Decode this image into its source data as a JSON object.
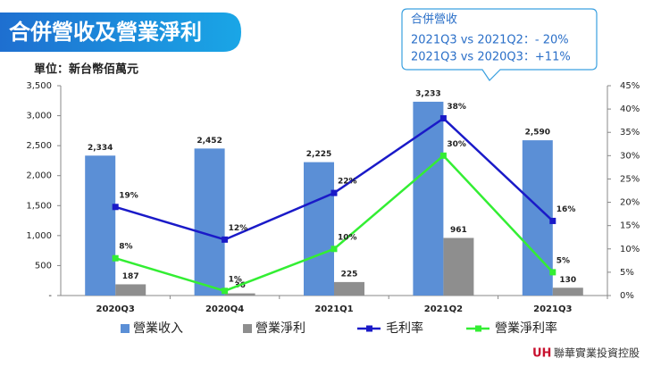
{
  "title": "合併營收及營業淨利",
  "unit": "單位：新台幣佰萬元",
  "callout": [
    "合併營收",
    "2021Q3 vs 2021Q2：- 20%",
    "2021Q3 vs 2020Q3：+11%"
  ],
  "logo": {
    "mark": "UH",
    "name": "聯華實業投資控股"
  },
  "chart_data": {
    "type": "bar_line",
    "categories": [
      "2020Q3",
      "2020Q4",
      "2021Q1",
      "2021Q2",
      "2021Q3"
    ],
    "series": [
      {
        "name": "營業收入",
        "type": "bar",
        "color": "#5b8fd6",
        "values": [
          2334,
          2452,
          2225,
          3233,
          2590
        ],
        "value_labels": [
          "2,334",
          "2,452",
          "2,225",
          "3,233",
          "2,590"
        ]
      },
      {
        "name": "營業淨利",
        "type": "bar",
        "color": "#8e8e8e",
        "values": [
          187,
          36,
          225,
          961,
          130
        ]
      },
      {
        "name": "毛利率",
        "type": "line",
        "axis": "y2",
        "color": "#1a1ac8",
        "values": [
          19,
          12,
          22,
          38,
          16
        ],
        "value_labels": [
          "19%",
          "12%",
          "22%",
          "38%",
          "16%"
        ]
      },
      {
        "name": "營業淨利率",
        "type": "line",
        "axis": "y2",
        "color": "#33ee33",
        "values": [
          8,
          1,
          10,
          30,
          5
        ],
        "value_labels": [
          "8%",
          "1%",
          "10%",
          "30%",
          "5%"
        ]
      }
    ],
    "ylim": [
      0,
      3500
    ],
    "yticks": [
      {
        "value": 0,
        "label": "-"
      },
      500,
      {
        "value": 1000,
        "label": "1,000"
      },
      {
        "value": 1500,
        "label": "1,500"
      },
      {
        "value": 2000,
        "label": "2,000"
      },
      {
        "value": 2500,
        "label": "2,500"
      },
      {
        "value": 3000,
        "label": "3,000"
      },
      {
        "value": 3500,
        "label": "3,500"
      }
    ],
    "y2lim": [
      0,
      45
    ],
    "y2ticks": [
      {
        "value": 0,
        "label": "0%"
      },
      {
        "value": 5,
        "label": "5%"
      },
      {
        "value": 10,
        "label": "10%"
      },
      {
        "value": 15,
        "label": "15%"
      },
      {
        "value": 20,
        "label": "20%"
      },
      {
        "value": 25,
        "label": "25%"
      },
      {
        "value": 30,
        "label": "30%"
      },
      {
        "value": 35,
        "label": "35%"
      },
      {
        "value": 40,
        "label": "40%"
      },
      {
        "value": 45,
        "label": "45%"
      }
    ],
    "grid": false,
    "legend": "bottom"
  }
}
